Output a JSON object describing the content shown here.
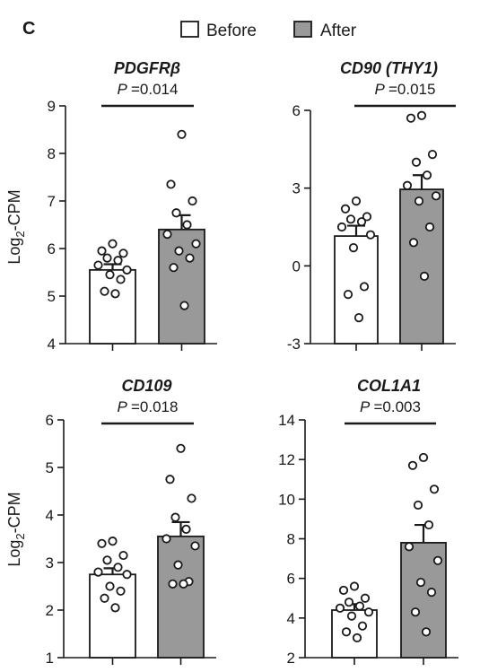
{
  "panel_letter": "C",
  "legend": [
    {
      "label": "Before",
      "color": "#ffffff"
    },
    {
      "label": "After",
      "color": "#999999"
    }
  ],
  "ylabel_base": "Log",
  "ylabel_sub": "2",
  "ylabel_rest": "-CPM",
  "chart_data": [
    {
      "type": "bar",
      "title": "PDGFRβ",
      "p_prefix": "P",
      "p_value": "=0.014",
      "categories": [
        "Before",
        "After"
      ],
      "ylim": [
        4,
        9
      ],
      "yticks": [
        4,
        5,
        6,
        7,
        8,
        9
      ],
      "ylabel": "Log2-CPM",
      "series": [
        {
          "name": "Before",
          "mean": 5.55,
          "sem": 0.12,
          "points": [
            6.1,
            5.95,
            5.9,
            5.8,
            5.75,
            5.65,
            5.55,
            5.45,
            5.35,
            5.1,
            5.05
          ]
        },
        {
          "name": "After",
          "mean": 6.4,
          "sem": 0.3,
          "points": [
            8.4,
            7.35,
            7.0,
            6.75,
            6.5,
            6.3,
            6.1,
            5.95,
            5.8,
            5.6,
            4.8
          ]
        }
      ]
    },
    {
      "type": "bar",
      "title": "CD90 (THY1)",
      "p_prefix": "P",
      "p_value": "=0.015",
      "categories": [
        "Before",
        "After"
      ],
      "ylim": [
        -3,
        6
      ],
      "yticks": [
        -3,
        0,
        3,
        6
      ],
      "ylabel": "",
      "series": [
        {
          "name": "Before",
          "mean": 1.15,
          "sem": 0.4,
          "points": [
            2.5,
            2.2,
            1.9,
            1.8,
            1.7,
            1.5,
            1.2,
            0.7,
            -0.8,
            -1.1,
            -2.0
          ]
        },
        {
          "name": "After",
          "mean": 2.95,
          "sem": 0.55,
          "points": [
            5.8,
            5.7,
            4.3,
            4.0,
            3.5,
            3.1,
            2.7,
            2.5,
            1.5,
            0.9,
            -0.4
          ]
        }
      ]
    },
    {
      "type": "bar",
      "title": "CD109",
      "p_prefix": "P",
      "p_value": "=0.018",
      "categories": [
        "Before",
        "After"
      ],
      "ylim": [
        1,
        6
      ],
      "yticks": [
        1,
        2,
        3,
        4,
        5,
        6
      ],
      "ylabel": "Log2-CPM",
      "series": [
        {
          "name": "Before",
          "mean": 2.75,
          "sem": 0.13,
          "points": [
            3.45,
            3.4,
            3.15,
            3.05,
            2.9,
            2.8,
            2.75,
            2.5,
            2.4,
            2.25,
            2.05
          ]
        },
        {
          "name": "After",
          "mean": 3.55,
          "sem": 0.3,
          "points": [
            5.4,
            4.75,
            4.35,
            3.95,
            3.7,
            3.5,
            3.35,
            2.95,
            2.6,
            2.55,
            2.55
          ]
        }
      ]
    },
    {
      "type": "bar",
      "title": "COL1A1",
      "p_prefix": "P",
      "p_value": "=0.003",
      "categories": [
        "Before",
        "After"
      ],
      "ylim": [
        2,
        14
      ],
      "yticks": [
        2,
        4,
        6,
        8,
        10,
        12,
        14
      ],
      "ylabel": "",
      "series": [
        {
          "name": "Before",
          "mean": 4.4,
          "sem": 0.3,
          "points": [
            5.6,
            5.4,
            5.0,
            4.8,
            4.6,
            4.5,
            4.3,
            4.1,
            3.6,
            3.3,
            3.0
          ]
        },
        {
          "name": "After",
          "mean": 7.8,
          "sem": 0.9,
          "points": [
            12.1,
            11.7,
            10.5,
            9.7,
            8.7,
            7.6,
            6.9,
            5.8,
            5.3,
            4.3,
            3.3
          ]
        }
      ]
    }
  ]
}
